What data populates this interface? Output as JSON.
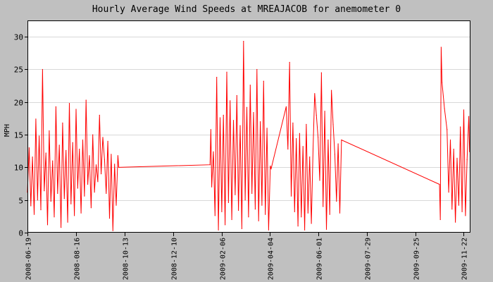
{
  "chart_data": {
    "type": "line",
    "title": "Hourly Average Wind Speeds at MREAJACOB for anemometer 0",
    "xlabel": "",
    "ylabel": "MPH",
    "x_ticks": [
      "2008-06-19",
      "2008-08-16",
      "2008-10-13",
      "2008-12-10",
      "2009-02-06",
      "2009-04-04",
      "2009-06-01",
      "2009-07-29",
      "2009-09-25",
      "2009-11-22"
    ],
    "xlim": [
      "2008-06-19",
      "2009-11-30"
    ],
    "y_ticks": [
      0,
      5,
      10,
      15,
      20,
      25,
      30
    ],
    "ylim": [
      0,
      32.5
    ],
    "grid": "horizontal",
    "series_color": "#ff0000",
    "background_color": "#ffffff",
    "frame_color": "#c0c0c0",
    "series": [
      {
        "name": "",
        "points": [
          [
            "2008-06-19",
            6.2
          ],
          [
            "2008-06-21",
            13.0
          ],
          [
            "2008-06-23",
            4.1
          ],
          [
            "2008-06-25",
            11.6
          ],
          [
            "2008-06-27",
            2.8
          ],
          [
            "2008-06-29",
            17.4
          ],
          [
            "2008-07-01",
            5.0
          ],
          [
            "2008-07-03",
            14.8
          ],
          [
            "2008-07-05",
            3.5
          ],
          [
            "2008-07-07",
            25.0
          ],
          [
            "2008-07-09",
            6.4
          ],
          [
            "2008-07-11",
            12.2
          ],
          [
            "2008-07-13",
            1.2
          ],
          [
            "2008-07-15",
            15.6
          ],
          [
            "2008-07-17",
            4.8
          ],
          [
            "2008-07-19",
            11.0
          ],
          [
            "2008-07-21",
            2.4
          ],
          [
            "2008-07-23",
            19.3
          ],
          [
            "2008-07-25",
            6.0
          ],
          [
            "2008-07-27",
            13.4
          ],
          [
            "2008-07-29",
            0.8
          ],
          [
            "2008-07-31",
            16.8
          ],
          [
            "2008-08-02",
            5.2
          ],
          [
            "2008-08-04",
            12.6
          ],
          [
            "2008-08-06",
            1.6
          ],
          [
            "2008-08-08",
            19.8
          ],
          [
            "2008-08-10",
            4.4
          ],
          [
            "2008-08-12",
            13.8
          ],
          [
            "2008-08-14",
            2.6
          ],
          [
            "2008-08-16",
            18.9
          ],
          [
            "2008-08-18",
            6.8
          ],
          [
            "2008-08-20",
            12.8
          ],
          [
            "2008-08-22",
            3.0
          ],
          [
            "2008-08-24",
            14.2
          ],
          [
            "2008-08-26",
            5.6
          ],
          [
            "2008-08-28",
            20.3
          ],
          [
            "2008-08-30",
            7.4
          ],
          [
            "2008-09-01",
            11.8
          ],
          [
            "2008-09-03",
            3.8
          ],
          [
            "2008-09-05",
            15.0
          ],
          [
            "2008-09-07",
            6.2
          ],
          [
            "2008-09-09",
            10.4
          ],
          [
            "2008-09-11",
            7.8
          ],
          [
            "2008-09-13",
            18.0
          ],
          [
            "2008-09-15",
            9.0
          ],
          [
            "2008-09-17",
            14.6
          ],
          [
            "2008-09-19",
            11.2
          ],
          [
            "2008-09-21",
            6.0
          ],
          [
            "2008-09-23",
            14.0
          ],
          [
            "2008-09-25",
            2.2
          ],
          [
            "2008-09-27",
            12.0
          ],
          [
            "2008-09-29",
            0.3
          ],
          [
            "2008-10-01",
            10.5
          ],
          [
            "2008-10-03",
            4.2
          ],
          [
            "2008-10-05",
            11.8
          ],
          [
            "2008-10-06",
            10.0
          ],
          [
            "2009-01-23",
            10.4
          ],
          [
            "2009-01-24",
            15.8
          ],
          [
            "2009-01-25",
            7.0
          ],
          [
            "2009-01-27",
            12.4
          ],
          [
            "2009-01-29",
            2.6
          ],
          [
            "2009-01-31",
            23.8
          ],
          [
            "2009-02-02",
            0.4
          ],
          [
            "2009-02-04",
            17.6
          ],
          [
            "2009-02-06",
            3.2
          ],
          [
            "2009-02-08",
            18.0
          ],
          [
            "2009-02-10",
            1.2
          ],
          [
            "2009-02-12",
            24.6
          ],
          [
            "2009-02-14",
            4.6
          ],
          [
            "2009-02-16",
            20.2
          ],
          [
            "2009-02-18",
            2.0
          ],
          [
            "2009-02-20",
            17.2
          ],
          [
            "2009-02-22",
            5.8
          ],
          [
            "2009-02-24",
            21.0
          ],
          [
            "2009-02-26",
            3.4
          ],
          [
            "2009-02-28",
            16.4
          ],
          [
            "2009-03-02",
            0.6
          ],
          [
            "2009-03-04",
            29.3
          ],
          [
            "2009-03-06",
            5.0
          ],
          [
            "2009-03-08",
            19.2
          ],
          [
            "2009-03-10",
            2.4
          ],
          [
            "2009-03-12",
            22.6
          ],
          [
            "2009-03-14",
            6.0
          ],
          [
            "2009-03-16",
            18.4
          ],
          [
            "2009-03-18",
            3.6
          ],
          [
            "2009-03-20",
            25.0
          ],
          [
            "2009-03-22",
            1.8
          ],
          [
            "2009-03-24",
            17.0
          ],
          [
            "2009-03-26",
            4.2
          ],
          [
            "2009-03-28",
            23.2
          ],
          [
            "2009-03-30",
            2.8
          ],
          [
            "2009-04-01",
            16.0
          ],
          [
            "2009-04-03",
            0.4
          ],
          [
            "2009-04-05",
            10.2
          ],
          [
            "2009-04-06",
            9.8
          ],
          [
            "2009-04-24",
            19.3
          ],
          [
            "2009-04-26",
            12.8
          ],
          [
            "2009-04-28",
            26.1
          ],
          [
            "2009-04-30",
            5.6
          ],
          [
            "2009-05-02",
            16.8
          ],
          [
            "2009-05-04",
            3.2
          ],
          [
            "2009-05-06",
            14.4
          ],
          [
            "2009-05-08",
            1.0
          ],
          [
            "2009-05-10",
            15.2
          ],
          [
            "2009-05-12",
            2.4
          ],
          [
            "2009-05-14",
            13.2
          ],
          [
            "2009-05-16",
            0.4
          ],
          [
            "2009-05-18",
            16.6
          ],
          [
            "2009-05-20",
            3.0
          ],
          [
            "2009-05-22",
            11.6
          ],
          [
            "2009-05-24",
            1.4
          ],
          [
            "2009-05-26",
            12.8
          ],
          [
            "2009-05-28",
            21.3
          ],
          [
            "2009-05-30",
            18.0
          ],
          [
            "2009-06-01",
            14.6
          ],
          [
            "2009-06-03",
            8.0
          ],
          [
            "2009-06-05",
            24.5
          ],
          [
            "2009-06-07",
            4.0
          ],
          [
            "2009-06-09",
            18.6
          ],
          [
            "2009-06-11",
            0.5
          ],
          [
            "2009-06-13",
            14.2
          ],
          [
            "2009-06-15",
            2.8
          ],
          [
            "2009-06-17",
            21.8
          ],
          [
            "2009-06-19",
            16.6
          ],
          [
            "2009-06-21",
            12.0
          ],
          [
            "2009-06-23",
            4.8
          ],
          [
            "2009-06-25",
            13.6
          ],
          [
            "2009-06-27",
            3.0
          ],
          [
            "2009-06-29",
            14.2
          ],
          [
            "2009-10-24",
            7.4
          ],
          [
            "2009-10-25",
            2.0
          ],
          [
            "2009-10-26",
            28.4
          ],
          [
            "2009-10-27",
            23.0
          ],
          [
            "2009-10-30",
            19.0
          ],
          [
            "2009-11-02",
            15.8
          ],
          [
            "2009-11-04",
            6.2
          ],
          [
            "2009-11-06",
            14.2
          ],
          [
            "2009-11-08",
            3.6
          ],
          [
            "2009-11-10",
            12.8
          ],
          [
            "2009-11-12",
            1.6
          ],
          [
            "2009-11-14",
            11.4
          ],
          [
            "2009-11-16",
            4.2
          ],
          [
            "2009-11-18",
            16.2
          ],
          [
            "2009-11-20",
            3.2
          ],
          [
            "2009-11-22",
            18.8
          ],
          [
            "2009-11-24",
            2.6
          ],
          [
            "2009-11-26",
            11.2
          ],
          [
            "2009-11-28",
            17.8
          ],
          [
            "2009-11-29",
            12.4
          ]
        ]
      }
    ]
  }
}
